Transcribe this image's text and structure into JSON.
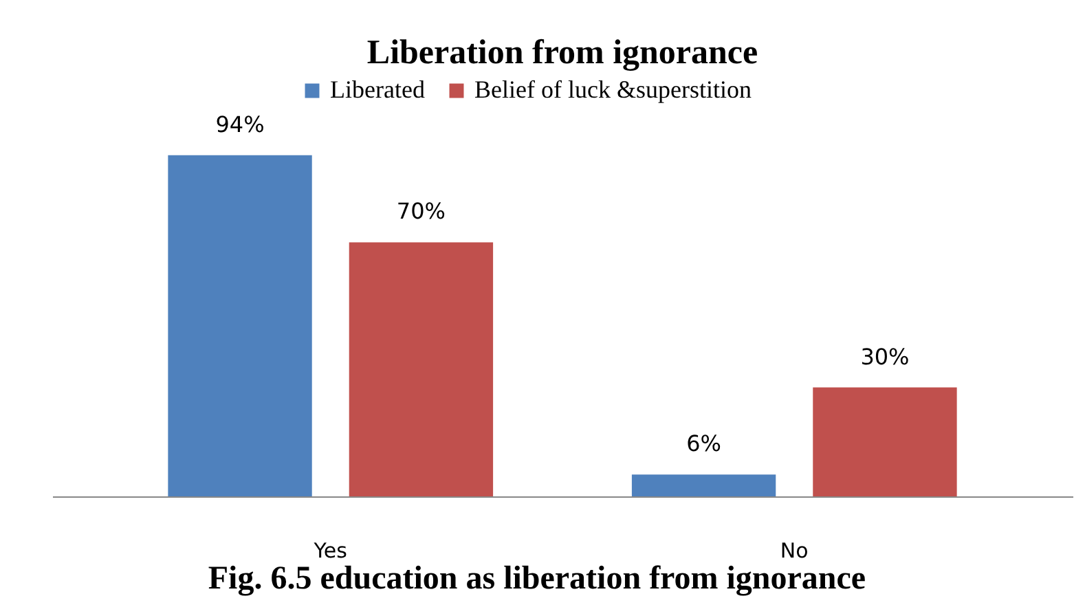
{
  "chart_data": {
    "type": "bar",
    "title": "Liberation from ignorance",
    "categories": [
      "Yes",
      "No"
    ],
    "series": [
      {
        "name": "Liberated",
        "color": "#4f81bd",
        "values": [
          94,
          6
        ],
        "value_labels": [
          "94%",
          "6%"
        ]
      },
      {
        "name": "Belief of luck  &superstition",
        "color": "#c0504d",
        "values": [
          70,
          30
        ],
        "value_labels": [
          "70%",
          "30%"
        ]
      }
    ],
    "legend": "top",
    "grid": false,
    "annotations": [
      "Fig. 6.5 education as liberation from ignorance"
    ]
  }
}
